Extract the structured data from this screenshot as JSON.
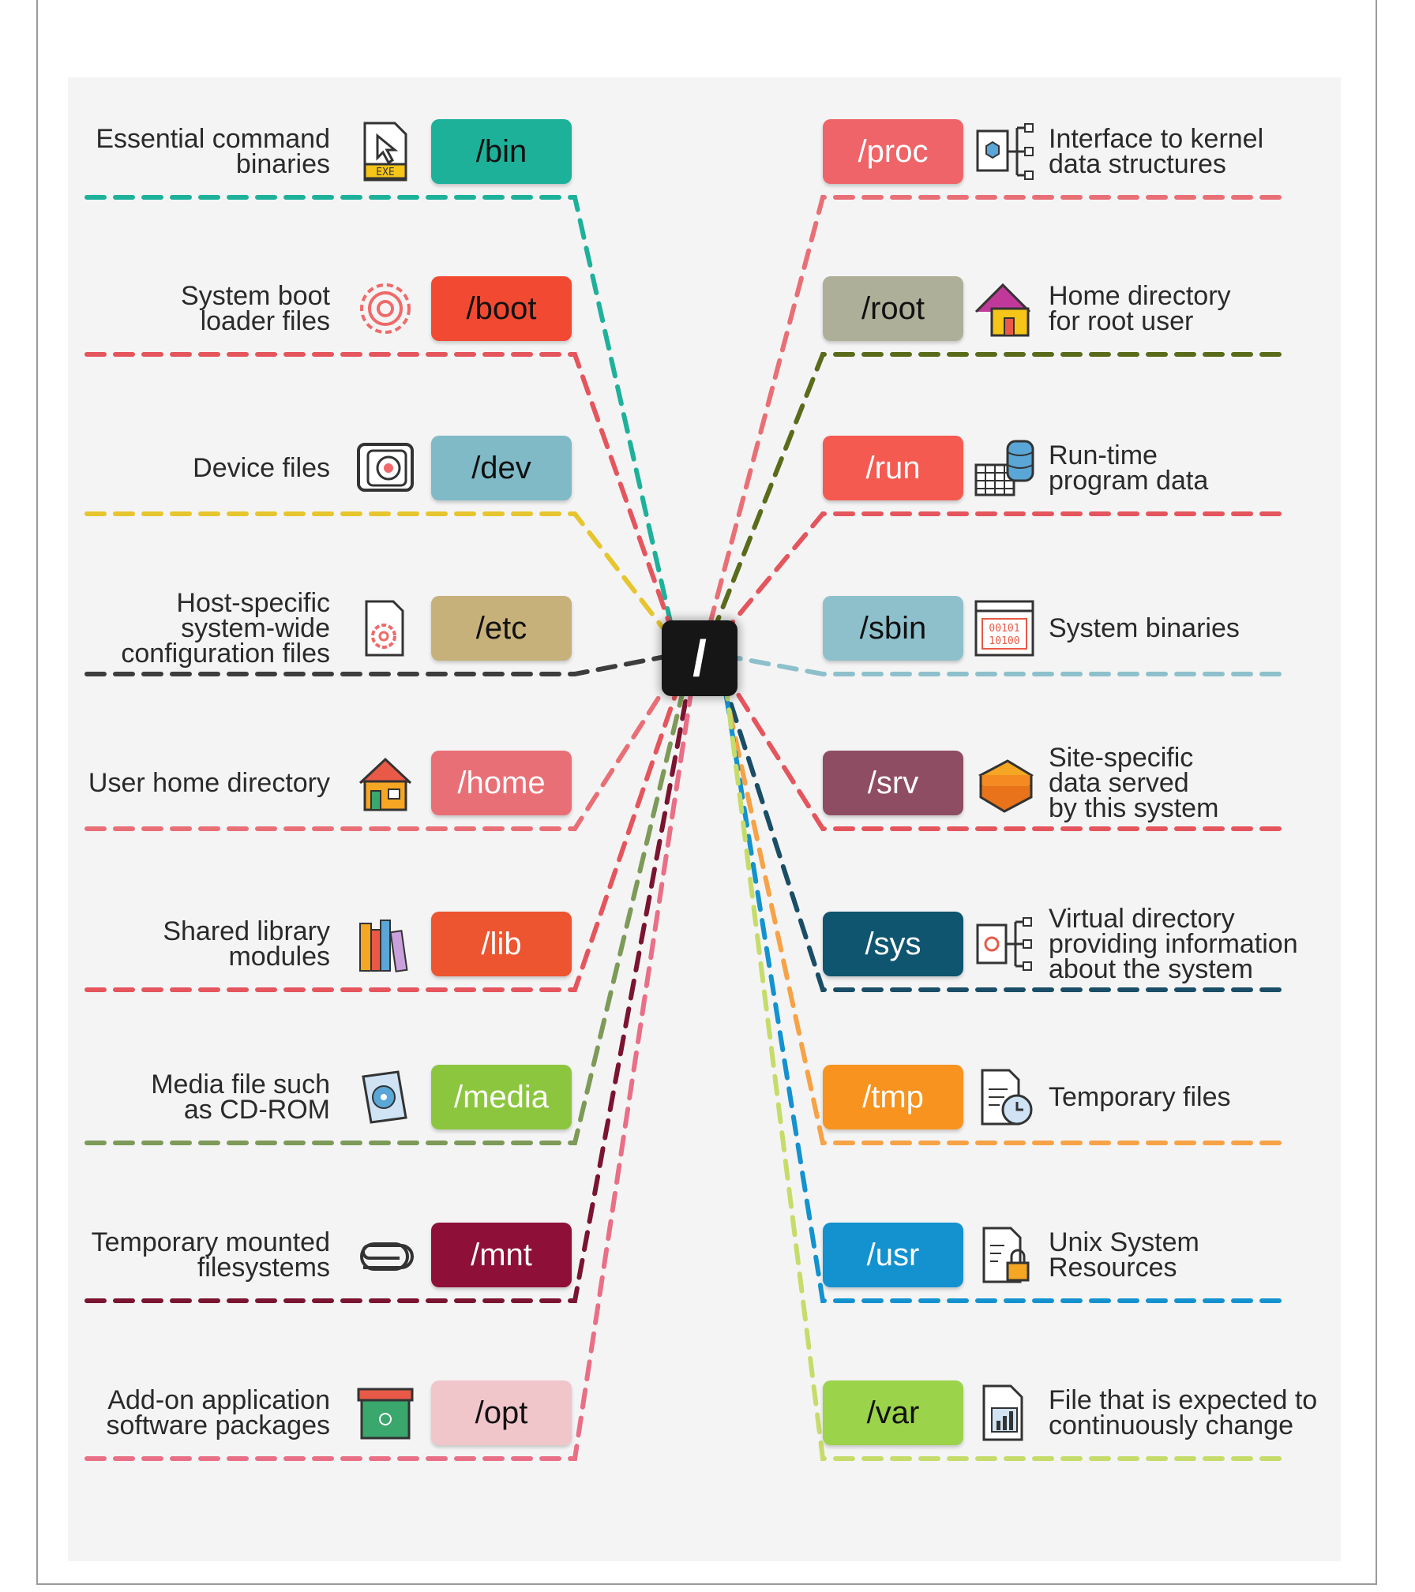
{
  "root": {
    "label": "/"
  },
  "left": [
    {
      "dir": "/bin",
      "desc": [
        "Essential command",
        "binaries"
      ],
      "color": "#1db19a",
      "line": "#1db19a",
      "icon": "exe-file-icon",
      "icon_text": "EXE"
    },
    {
      "dir": "/boot",
      "desc": [
        "System boot",
        "loader files"
      ],
      "color": "#f24a32",
      "line": "#e5555d",
      "icon": "gear-icon"
    },
    {
      "dir": "/dev",
      "desc": [
        "Device files"
      ],
      "color": "#7fbac6",
      "line": "#e6c52e",
      "icon": "device-icon"
    },
    {
      "dir": "/etc",
      "desc": [
        "Host-specific",
        "system-wide",
        "configuration files"
      ],
      "color": "#c7b17a",
      "line": "#3d3d3d",
      "icon": "config-file-icon"
    },
    {
      "dir": "/home",
      "desc": [
        "User home directory"
      ],
      "color": "#e96f76",
      "line": "#e96f76",
      "icon": "house-icon"
    },
    {
      "dir": "/lib",
      "desc": [
        "Shared library",
        "modules"
      ],
      "color": "#ec5530",
      "line": "#e5555d",
      "icon": "books-icon"
    },
    {
      "dir": "/media",
      "desc": [
        "Media file such",
        "as CD-ROM"
      ],
      "color": "#8cc63f",
      "line": "#7d9a58",
      "icon": "cd-rom-icon"
    },
    {
      "dir": "/mnt",
      "desc": [
        "Temporary mounted",
        "filesystems"
      ],
      "color": "#8e1038",
      "line": "#7a1430",
      "icon": "clip-icon"
    },
    {
      "dir": "/opt",
      "desc": [
        "Add-on application",
        "software packages"
      ],
      "color": "#f1c6cb",
      "line": "#e96f86",
      "icon": "package-box-icon"
    }
  ],
  "right": [
    {
      "dir": "/proc",
      "desc": [
        "Interface to kernel",
        "data structures"
      ],
      "color": "#ef6468",
      "line": "#e96f76",
      "icon": "kernel-tree-icon"
    },
    {
      "dir": "/root",
      "desc": [
        "Home directory",
        "for root user"
      ],
      "color": "#adaf98",
      "line": "#5a6b1a",
      "icon": "root-home-icon"
    },
    {
      "dir": "/run",
      "desc": [
        "Run-time",
        "program data"
      ],
      "color": "#f55a51",
      "line": "#e5555d",
      "icon": "database-table-icon"
    },
    {
      "dir": "/sbin",
      "desc": [
        "System binaries"
      ],
      "color": "#8ec0cc",
      "line": "#8ec0cc",
      "icon": "binary-code-icon",
      "icon_text": [
        "00101",
        "10100"
      ]
    },
    {
      "dir": "/srv",
      "desc": [
        "Site-specific",
        "data served",
        "by this system"
      ],
      "color": "#8e4d62",
      "line": "#e5555d",
      "icon": "server-stack-icon"
    },
    {
      "dir": "/sys",
      "desc": [
        "Virtual directory",
        "providing information",
        "about the system"
      ],
      "color": "#0f5570",
      "line": "#1a4d66",
      "icon": "system-tree-icon"
    },
    {
      "dir": "/tmp",
      "desc": [
        "Temporary files"
      ],
      "color": "#f7931e",
      "line": "#f7a246",
      "icon": "temp-file-clock-icon"
    },
    {
      "dir": "/usr",
      "desc": [
        "Unix System",
        "Resources"
      ],
      "color": "#1392cf",
      "line": "#1392cf",
      "icon": "locked-file-icon"
    },
    {
      "dir": "/var",
      "desc": [
        "File that is expected to",
        "continuously change"
      ],
      "color": "#9bd34a",
      "line": "#c6dc6a",
      "icon": "chart-file-icon"
    }
  ]
}
